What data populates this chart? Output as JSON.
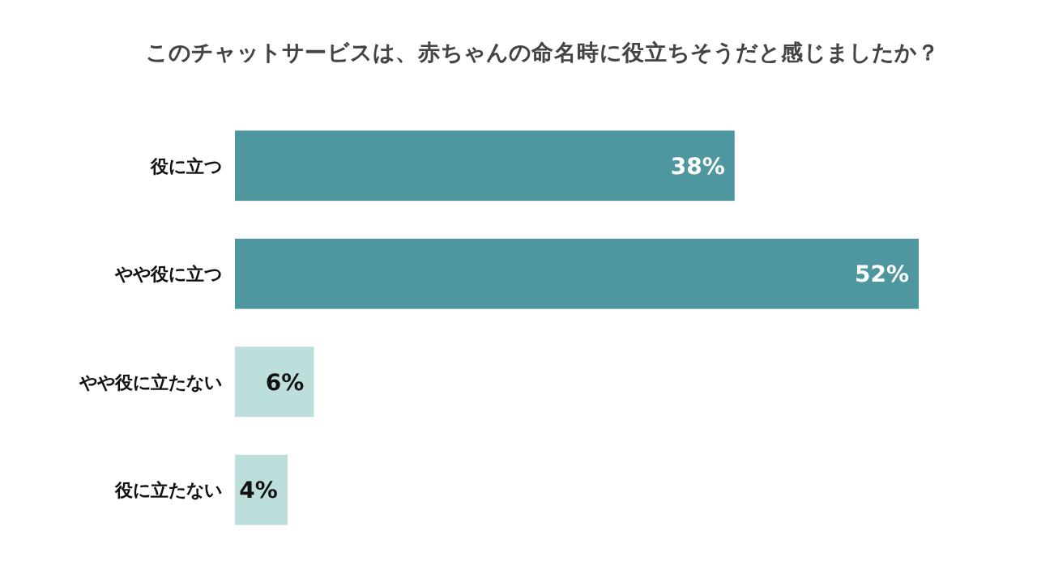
{
  "chart_data": {
    "type": "bar",
    "orientation": "horizontal",
    "title": "このチャットサービスは、赤ちゃんの命名時に役立ちそうだと感じましたか？",
    "categories": [
      "役に立つ",
      "やや役に立つ",
      "やや役に立たない",
      "役に立たない"
    ],
    "values": [
      38,
      52,
      6,
      4
    ],
    "value_labels": [
      "38%",
      "52%",
      "6%",
      "4%"
    ],
    "colors": [
      "#4f979e",
      "#4f979e",
      "#bcdfdb",
      "#bcdfdb"
    ]
  }
}
